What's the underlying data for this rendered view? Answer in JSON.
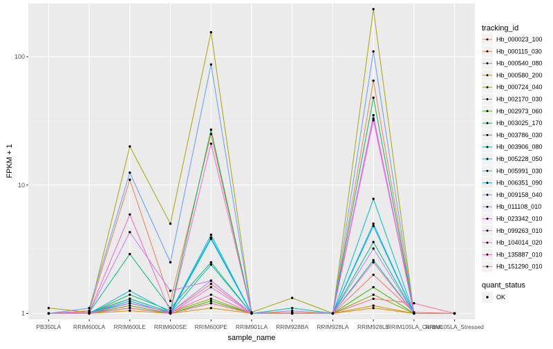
{
  "chart_data": {
    "type": "line",
    "xlabel": "sample_name",
    "ylabel": "FPKM + 1",
    "y_scale": "log10",
    "ylim": [
      0.9,
      260
    ],
    "y_ticks": [
      1,
      10,
      100
    ],
    "y_tick_labels": [
      "1",
      "10",
      "100"
    ],
    "grid": true,
    "legend_position": "right",
    "categories": [
      "PB350LA",
      "RRIM600LA",
      "RRIM600LE",
      "RRIM600SE",
      "RRIM600PE",
      "RRIM901LA",
      "RRIM928BA",
      "RRIM928LA",
      "RRIM928LE",
      "RRIM105LA_Control",
      "RRIM105LA_Stressed"
    ],
    "legend_title": "tracking_id",
    "series": [
      {
        "name": "Hb_000023_100",
        "color": "#F8766D",
        "values": [
          1,
          1.02,
          1.3,
          1.02,
          1.7,
          1,
          1,
          1,
          2.0,
          1.02,
          1
        ]
      },
      {
        "name": "Hb_000115_030",
        "color": "#EF7F49",
        "values": [
          1,
          1.05,
          11,
          1.25,
          25,
          1,
          1.02,
          1,
          65,
          1,
          1
        ]
      },
      {
        "name": "Hb_000540_080",
        "color": "#E58700",
        "values": [
          1,
          1.0,
          1.1,
          1.0,
          1.2,
          1,
          1,
          1,
          1.15,
          1,
          1
        ]
      },
      {
        "name": "Hb_000580_200",
        "color": "#D69100",
        "values": [
          1,
          1.0,
          1.05,
          1.0,
          1.1,
          1,
          1,
          1,
          1.1,
          1,
          1
        ]
      },
      {
        "name": "Hb_000724_040",
        "color": "#A3A500",
        "values": [
          1.1,
          1.02,
          20,
          5,
          155,
          1.02,
          1.32,
          1,
          235,
          1,
          1
        ]
      },
      {
        "name": "Hb_002170_030",
        "color": "#7CAE00",
        "values": [
          1,
          1.0,
          1.2,
          1.02,
          1.3,
          1,
          1,
          1,
          1.4,
          1,
          1
        ]
      },
      {
        "name": "Hb_002973_060",
        "color": "#39B600",
        "values": [
          1,
          1.0,
          1.15,
          1.0,
          1.25,
          1,
          1,
          1,
          1.6,
          1,
          1
        ]
      },
      {
        "name": "Hb_003025_170",
        "color": "#00BB4E",
        "values": [
          1,
          1.0,
          1.4,
          1.05,
          27,
          1,
          1,
          1,
          48,
          1,
          1
        ]
      },
      {
        "name": "Hb_003786_030",
        "color": "#00BF7D",
        "values": [
          1,
          1.02,
          2.9,
          1.1,
          2.5,
          1,
          1,
          1,
          3.6,
          1,
          1
        ]
      },
      {
        "name": "Hb_003906_080",
        "color": "#00C1A3",
        "values": [
          1,
          1.0,
          1.3,
          1.02,
          2.4,
          1,
          1.1,
          1,
          2.6,
          1,
          1
        ]
      },
      {
        "name": "Hb_005228_050",
        "color": "#00BFC4",
        "values": [
          1,
          1.02,
          1.2,
          1.02,
          4.1,
          1,
          1,
          1,
          7.8,
          1,
          1
        ]
      },
      {
        "name": "Hb_005991_030",
        "color": "#00B8E7",
        "values": [
          1,
          1.0,
          1.5,
          1.02,
          3.9,
          1,
          1,
          1,
          5.0,
          1,
          1
        ]
      },
      {
        "name": "Hb_006351_090",
        "color": "#00ACFC",
        "values": [
          1,
          1.0,
          1.25,
          1.0,
          3.8,
          1,
          1,
          1,
          4.8,
          1,
          1
        ]
      },
      {
        "name": "Hb_009158_040",
        "color": "#619CFF",
        "values": [
          1,
          1.1,
          12.5,
          2.5,
          87,
          1,
          1,
          1,
          110,
          1,
          1
        ]
      },
      {
        "name": "Hb_011108_010",
        "color": "#A58AFF",
        "values": [
          1,
          1.0,
          1.2,
          1.02,
          1.8,
          1,
          1.05,
          1,
          3.2,
          1,
          1
        ]
      },
      {
        "name": "Hb_023342_010",
        "color": "#C77CFF",
        "values": [
          1,
          1.02,
          4.3,
          1.5,
          1.8,
          1,
          1,
          1,
          35,
          1,
          1
        ]
      },
      {
        "name": "Hb_099263_010",
        "color": "#E76BF3",
        "values": [
          1,
          1.0,
          1.1,
          1.0,
          1.6,
          1,
          1,
          1,
          32,
          1,
          1
        ]
      },
      {
        "name": "Hb_104014_020",
        "color": "#FA62DB",
        "values": [
          1,
          1.0,
          1.2,
          1.02,
          21,
          1,
          1,
          1,
          33,
          1,
          1
        ]
      },
      {
        "name": "Hb_135887_010",
        "color": "#FF62BC",
        "values": [
          1,
          1.02,
          5.9,
          1.02,
          1.4,
          1,
          1,
          1,
          2.5,
          1,
          1
        ]
      },
      {
        "name": "Hb_151290_010",
        "color": "#FF6C91",
        "values": [
          1,
          1.0,
          1.1,
          1.0,
          1.2,
          1,
          1,
          1,
          1.3,
          1.2,
          1
        ]
      }
    ],
    "legend2_title": "quant_status",
    "legend2_items": [
      {
        "label": "OK",
        "marker": "point"
      }
    ]
  }
}
